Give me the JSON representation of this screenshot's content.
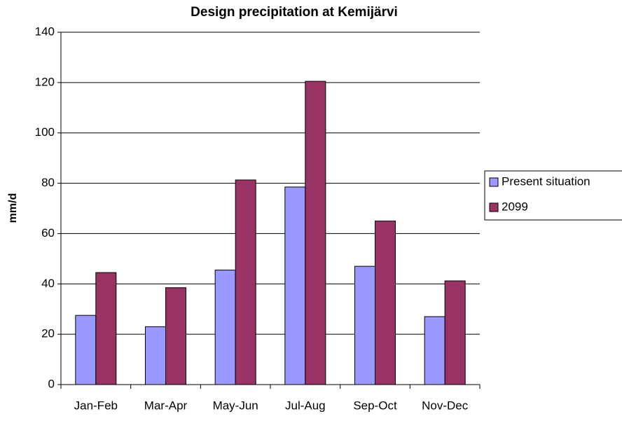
{
  "chart_data": {
    "type": "bar",
    "title": "Design precipitation at Kemijärvi",
    "y_label": "mm/d",
    "categories": [
      "Jan-Feb",
      "Mar-Apr",
      "May-Jun",
      "Jul-Aug",
      "Sep-Oct",
      "Nov-Dec"
    ],
    "series": [
      {
        "name": "Present situation",
        "color": "#9999ff",
        "values": [
          27.5,
          23,
          45.5,
          78.5,
          47,
          27
        ]
      },
      {
        "name": "2099",
        "color": "#993366",
        "values": [
          44.5,
          38.5,
          81.3,
          120.5,
          65,
          41.2
        ]
      }
    ],
    "ylim": [
      0,
      140
    ],
    "yticks": [
      0,
      20,
      40,
      60,
      80,
      100,
      120,
      140
    ],
    "grid": true,
    "legend": "right"
  }
}
